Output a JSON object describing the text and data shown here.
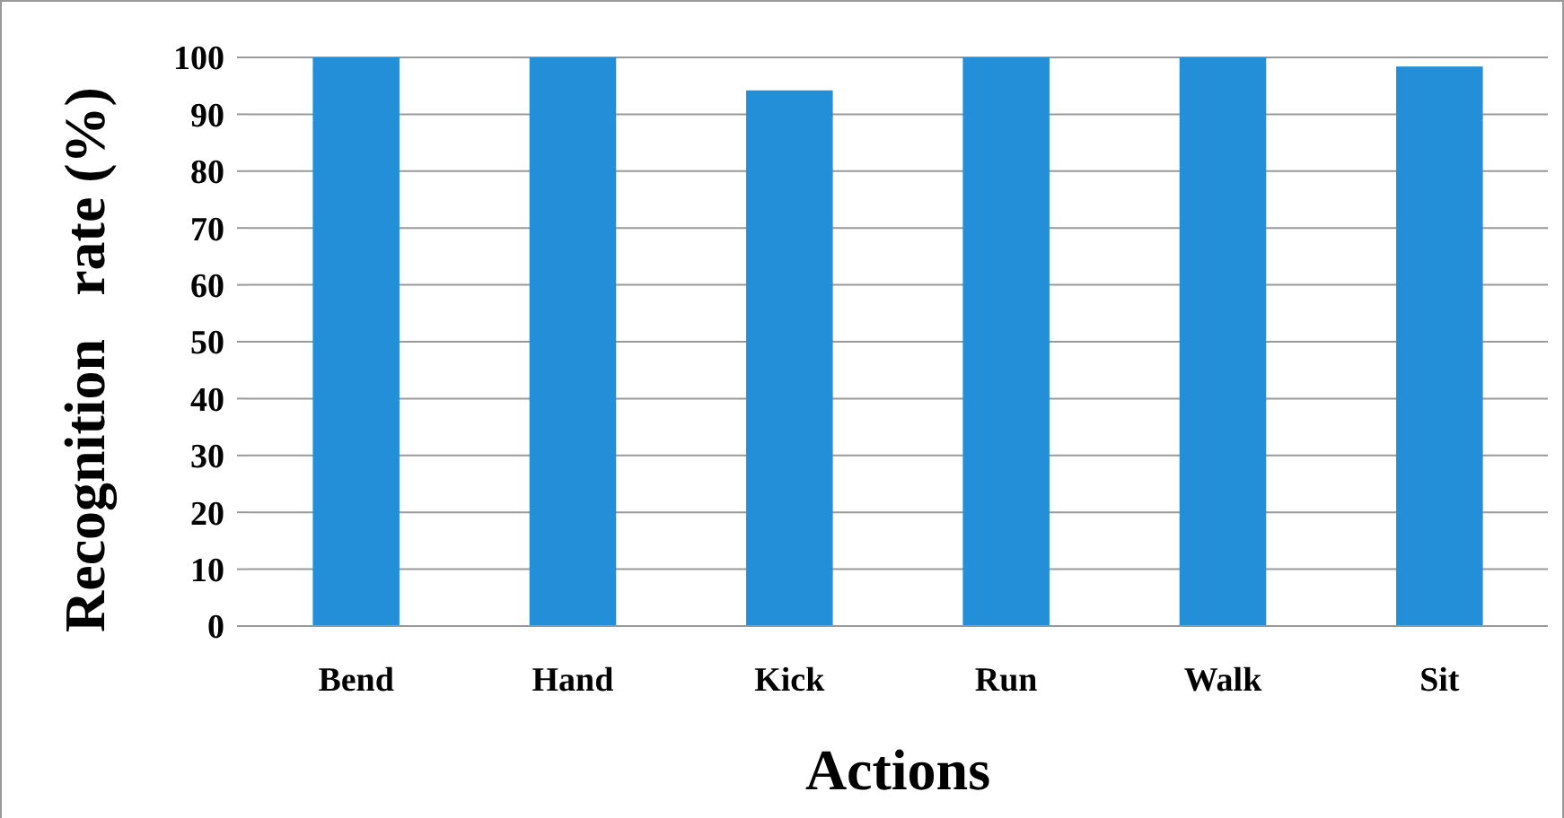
{
  "chart_data": {
    "type": "bar",
    "xlabel": "Actions",
    "ylabel": "Recognition   rate (%)",
    "categories": [
      "Bend",
      "Hand",
      "Kick",
      "Run",
      "Walk",
      "Sit"
    ],
    "values": [
      100,
      100,
      94.2,
      100,
      100,
      98.4
    ],
    "color": "#228fd8",
    "ylim": [
      0,
      100
    ],
    "yticks": [
      0,
      10,
      20,
      30,
      40,
      50,
      60,
      70,
      80,
      90,
      100
    ],
    "grid": "y"
  }
}
